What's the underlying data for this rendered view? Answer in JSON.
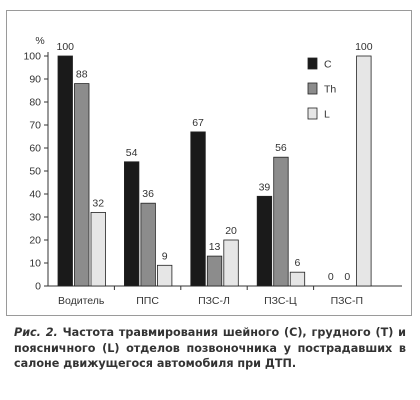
{
  "chart_data": {
    "type": "bar",
    "title": "",
    "xlabel": "",
    "ylabel": "%",
    "ylim": [
      0,
      100
    ],
    "yticks": [
      0,
      10,
      20,
      30,
      40,
      50,
      60,
      70,
      80,
      90,
      100
    ],
    "grid": false,
    "legend_position": "right",
    "categories": [
      "Водитель",
      "ППС",
      "ПЗС-Л",
      "ПЗС-Ц",
      "ПЗС-П"
    ],
    "series": [
      {
        "name": "C",
        "values": [
          100,
          54,
          67,
          39,
          0
        ],
        "color": "#1a1a1a"
      },
      {
        "name": "Th",
        "values": [
          88,
          36,
          13,
          56,
          0
        ],
        "color": "#8c8c8c"
      },
      {
        "name": "L",
        "values": [
          32,
          9,
          20,
          6,
          100
        ],
        "color": "#e6e6e6"
      }
    ],
    "data_labels": [
      [
        "100",
        "88",
        "32"
      ],
      [
        "54",
        "36",
        "9"
      ],
      [
        "67",
        "13",
        "20"
      ],
      [
        "39",
        "56",
        "6"
      ],
      [
        "0",
        "0",
        "100"
      ]
    ]
  },
  "caption": {
    "label": "Рис. 2.",
    "text": "Частота травмирования шейного (C), грудного (T) и поясничного (L) отделов позвоночника у пострадавших в салоне движущегося автомобиля при ДТП."
  }
}
